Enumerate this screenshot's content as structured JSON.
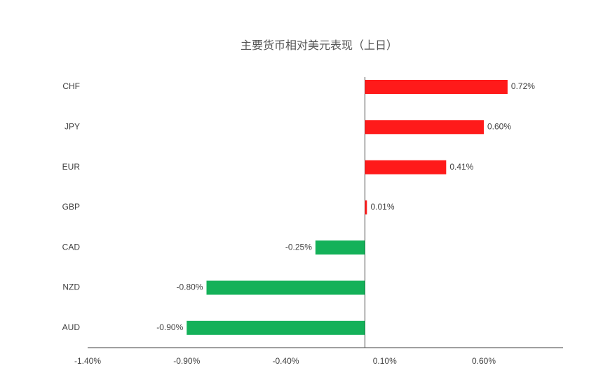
{
  "chart_data": {
    "type": "bar",
    "orientation": "horizontal",
    "title": "主要货币相对美元表现（上日）",
    "categories": [
      "CHF",
      "JPY",
      "EUR",
      "GBP",
      "CAD",
      "NZD",
      "AUD"
    ],
    "values": [
      0.72,
      0.6,
      0.41,
      0.01,
      -0.25,
      -0.8,
      -0.9
    ],
    "value_labels": [
      "0.72%",
      "0.60%",
      "0.41%",
      "0.01%",
      "-0.25%",
      "-0.80%",
      "-0.90%"
    ],
    "positive_color": "#ff1a1a",
    "negative_color": "#14b159",
    "xlim": [
      -1.4,
      1.0
    ],
    "xticks": [
      {
        "value": -1.4,
        "label": "-1.40%"
      },
      {
        "value": -0.9,
        "label": "-0.90%"
      },
      {
        "value": -0.4,
        "label": "-0.40%"
      },
      {
        "value": 0.1,
        "label": "0.10%"
      },
      {
        "value": 0.6,
        "label": "0.60%"
      }
    ],
    "grid": false
  }
}
